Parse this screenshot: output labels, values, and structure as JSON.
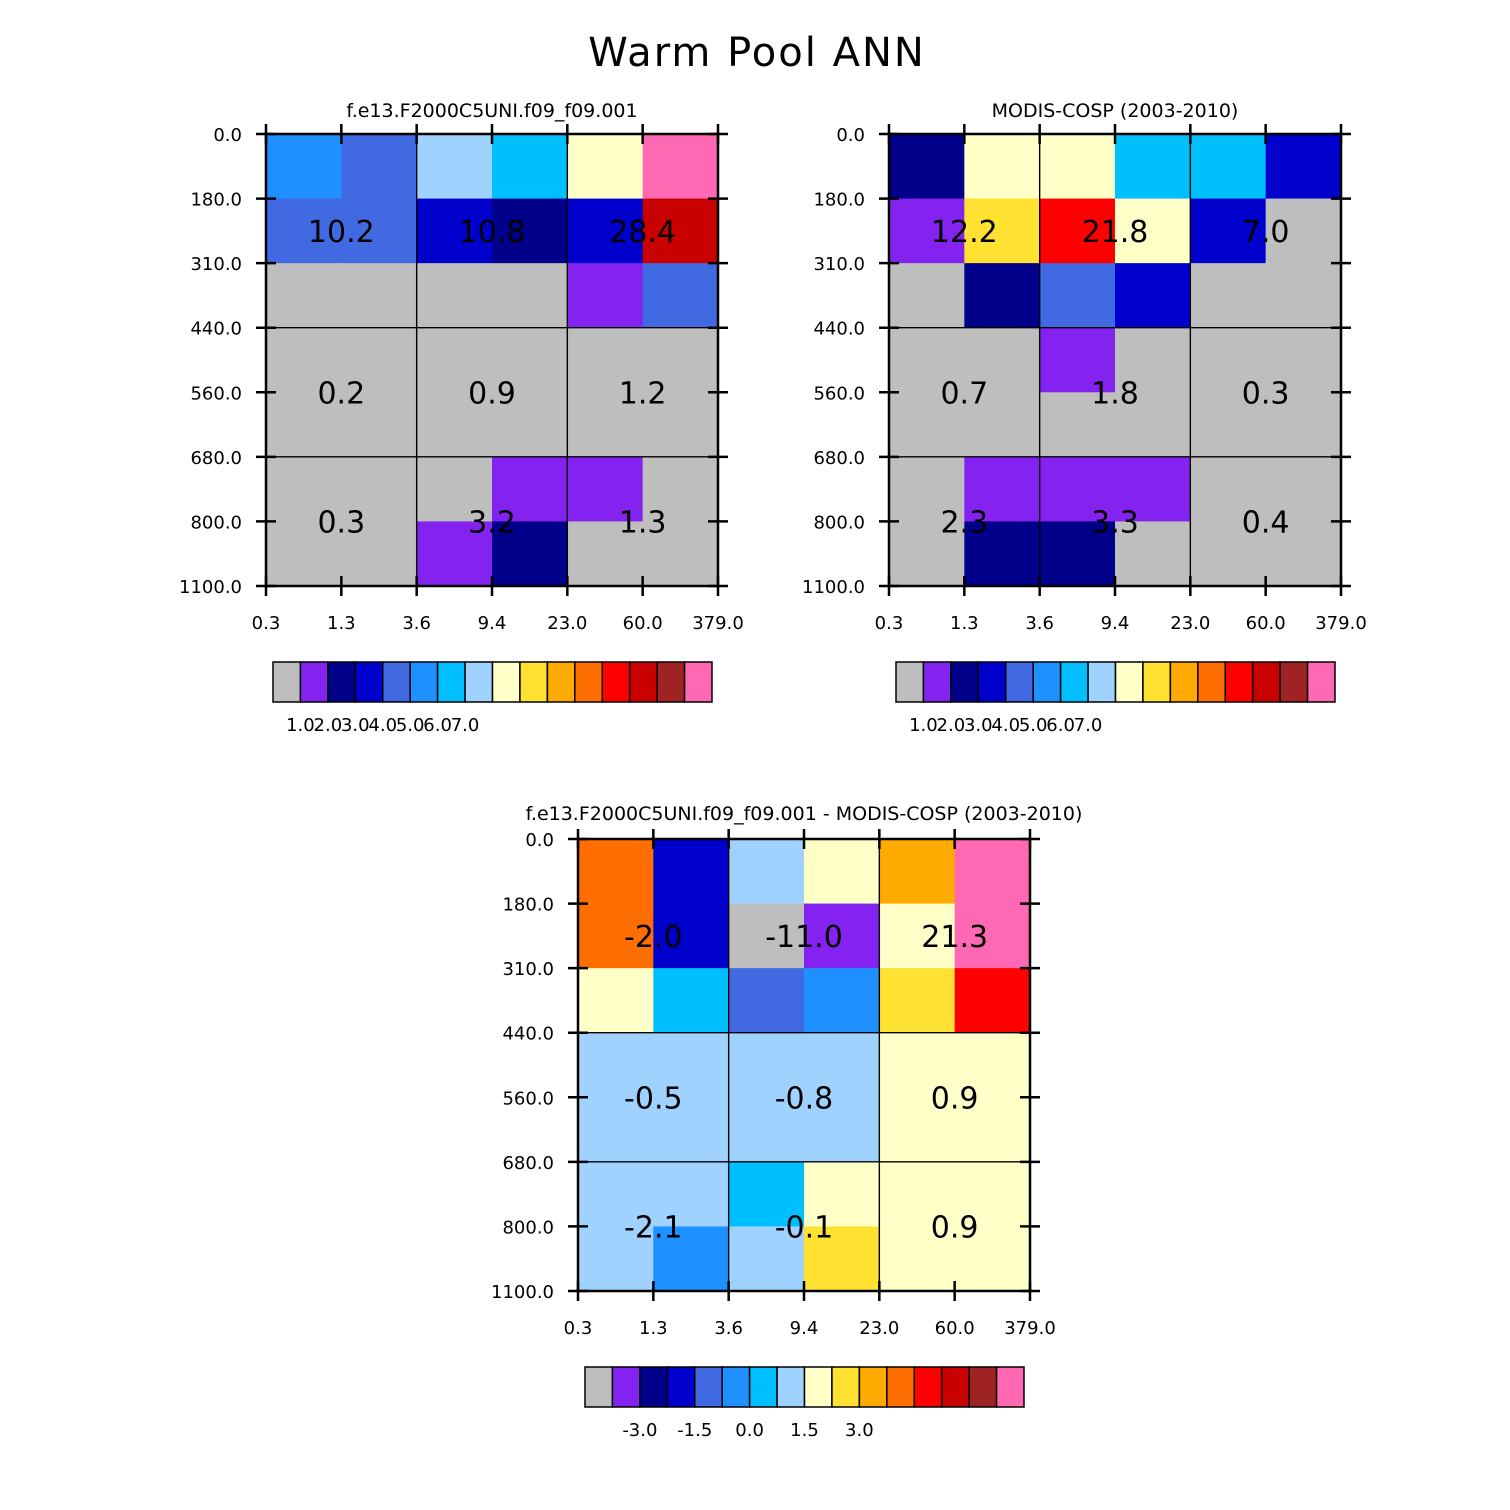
{
  "figure_title": "Warm Pool ANN",
  "palette": [
    "#bebebe",
    "#8422f0",
    "#00008b",
    "#0000cd",
    "#4169e1",
    "#1e90ff",
    "#00bfff",
    "#a0d2ff",
    "#ffffc8",
    "#ffe132",
    "#ffaa00",
    "#ff6e00",
    "#ff0000",
    "#c80000",
    "#a02323",
    "#ff69b4"
  ],
  "chart_data": [
    {
      "type": "heatmap",
      "title": "f.e13.F2000C5UNI.f09_f09.001",
      "x_ticks": [
        "0.3",
        "1.3",
        "3.6",
        "9.4",
        "23.0",
        "60.0",
        "379.0"
      ],
      "y_ticks": [
        "0.0",
        "180.0",
        "310.0",
        "440.0",
        "560.0",
        "680.0",
        "800.0",
        "1100.0"
      ],
      "cells": [
        [
          5,
          4,
          7,
          6,
          8,
          15
        ],
        [
          4,
          4,
          3,
          2,
          3,
          13
        ],
        [
          0,
          0,
          0,
          0,
          1,
          4
        ],
        [
          0,
          0,
          0,
          0,
          0,
          0
        ],
        [
          0,
          0,
          0,
          0,
          0,
          0
        ],
        [
          0,
          0,
          0,
          1,
          1,
          0
        ],
        [
          0,
          0,
          1,
          2,
          0,
          0
        ]
      ],
      "group_labels": [
        [
          "10.2",
          "10.8",
          "28.4"
        ],
        [
          "0.2",
          "0.9",
          "1.2"
        ],
        [
          "0.3",
          "3.2",
          "1.3"
        ]
      ],
      "colorbar": {
        "labels": [
          "1.0",
          "2.0",
          "3.0",
          "4.0",
          "5.0",
          "6.0",
          "7.0"
        ]
      }
    },
    {
      "type": "heatmap",
      "title": "MODIS-COSP (2003-2010)",
      "x_ticks": [
        "0.3",
        "1.3",
        "3.6",
        "9.4",
        "23.0",
        "60.0",
        "379.0"
      ],
      "y_ticks": [
        "0.0",
        "180.0",
        "310.0",
        "440.0",
        "560.0",
        "680.0",
        "800.0",
        "1100.0"
      ],
      "cells": [
        [
          2,
          8,
          8,
          6,
          6,
          3
        ],
        [
          1,
          9,
          12,
          8,
          3,
          0
        ],
        [
          0,
          2,
          4,
          3,
          0,
          0
        ],
        [
          0,
          0,
          1,
          0,
          0,
          0
        ],
        [
          0,
          0,
          0,
          0,
          0,
          0
        ],
        [
          0,
          1,
          1,
          1,
          0,
          0
        ],
        [
          0,
          2,
          2,
          0,
          0,
          0
        ]
      ],
      "group_labels": [
        [
          "12.2",
          "21.8",
          "7.0"
        ],
        [
          "0.7",
          "1.8",
          "0.3"
        ],
        [
          "2.3",
          "3.3",
          "0.4"
        ]
      ],
      "colorbar": {
        "labels": [
          "1.0",
          "2.0",
          "3.0",
          "4.0",
          "5.0",
          "6.0",
          "7.0"
        ]
      }
    },
    {
      "type": "heatmap",
      "title": "f.e13.F2000C5UNI.f09_f09.001 - MODIS-COSP (2003-2010)",
      "x_ticks": [
        "0.3",
        "1.3",
        "3.6",
        "9.4",
        "23.0",
        "60.0",
        "379.0"
      ],
      "y_ticks": [
        "0.0",
        "180.0",
        "310.0",
        "440.0",
        "560.0",
        "680.0",
        "800.0",
        "1100.0"
      ],
      "cells": [
        [
          11,
          3,
          7,
          8,
          10,
          15
        ],
        [
          11,
          3,
          0,
          1,
          8,
          15
        ],
        [
          8,
          6,
          4,
          5,
          9,
          12
        ],
        [
          7,
          7,
          7,
          7,
          8,
          8
        ],
        [
          7,
          7,
          7,
          7,
          8,
          8
        ],
        [
          7,
          7,
          6,
          8,
          8,
          8
        ],
        [
          7,
          5,
          7,
          9,
          8,
          8
        ]
      ],
      "group_labels": [
        [
          "-2.0",
          "-11.0",
          "21.3"
        ],
        [
          "-0.5",
          "-0.8",
          "0.9"
        ],
        [
          "-2.1",
          "-0.1",
          "0.9"
        ]
      ],
      "colorbar": {
        "labels": [
          "-3.0",
          "-1.5",
          "0.0",
          "1.5",
          "3.0"
        ],
        "label_every": 2,
        "label_start": 2
      }
    }
  ]
}
